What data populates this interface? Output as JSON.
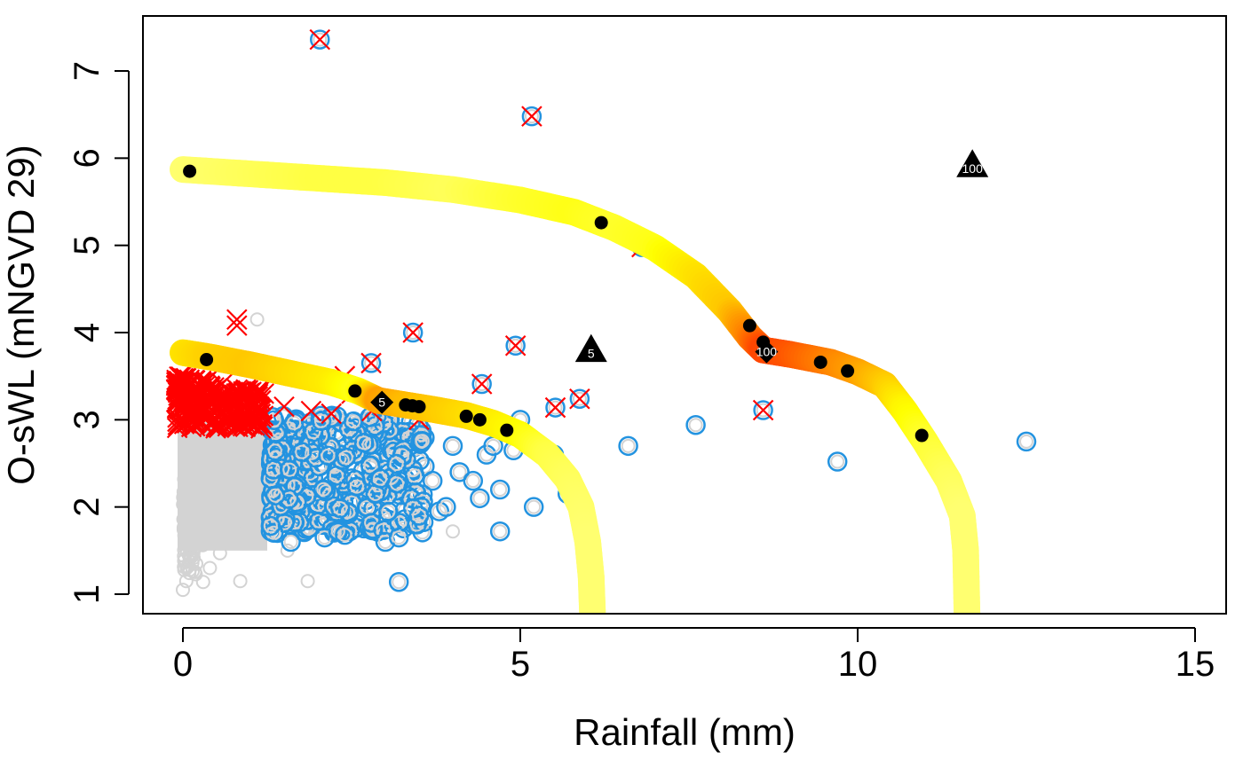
{
  "chart_data": {
    "type": "scatter",
    "title": "",
    "xlabel": "Rainfall (mm)",
    "ylabel": "O-sWL (mNGVD 29)",
    "xlim": [
      -0.6,
      15.5
    ],
    "ylim": [
      0.78,
      7.6
    ],
    "xticks": [
      0,
      5,
      10,
      15
    ],
    "yticks": [
      1,
      2,
      3,
      4,
      5,
      6,
      7
    ],
    "grid": false,
    "legend": "none",
    "colors": {
      "gray_points": "#d3d3d3",
      "blue_points": "#2393e0",
      "red_crosses": "#ff0000",
      "curve_low": "#ffff70",
      "curve_mid": "#ffd700",
      "curve_high": "#ff4500",
      "black_marks": "#000000"
    },
    "series": [
      {
        "name": "all-observations-gray",
        "marker": "open-circle",
        "note": "dense background cloud at rainfall 0-1.3, O-sWL 1-3 plus sparse scatter",
        "dense_region": {
          "x": [
            0,
            1.3
          ],
          "y": [
            1.2,
            2.95
          ]
        },
        "points": [
          [
            0.0,
            1.05
          ],
          [
            0.05,
            1.15
          ],
          [
            0.3,
            1.14
          ],
          [
            0.4,
            1.3
          ],
          [
            0.55,
            1.47
          ],
          [
            0.85,
            1.15
          ],
          [
            1.85,
            1.15
          ],
          [
            0.9,
            1.7
          ],
          [
            1.2,
            1.78
          ],
          [
            1.55,
            1.5
          ],
          [
            1.1,
            4.15
          ],
          [
            2.0,
            3.5
          ],
          [
            4.0,
            1.72
          ],
          [
            2.8,
            2.0
          ]
        ]
      },
      {
        "name": "rainfall-exceedances-blue",
        "marker": "open-circle",
        "dense_region": {
          "x": [
            1.3,
            3.0
          ],
          "y": [
            1.6,
            3.05
          ]
        },
        "points": [
          [
            1.6,
            1.6
          ],
          [
            2.1,
            1.65
          ],
          [
            2.3,
            1.72
          ],
          [
            2.4,
            1.68
          ],
          [
            3.0,
            1.6
          ],
          [
            3.2,
            1.65
          ],
          [
            3.2,
            1.14
          ],
          [
            3.5,
            1.9
          ],
          [
            3.8,
            1.95
          ],
          [
            3.9,
            2.0
          ],
          [
            3.7,
            2.3
          ],
          [
            4.1,
            2.4
          ],
          [
            4.3,
            2.3
          ],
          [
            4.0,
            2.7
          ],
          [
            4.5,
            2.6
          ],
          [
            4.7,
            2.2
          ],
          [
            4.4,
            2.1
          ],
          [
            4.7,
            1.72
          ],
          [
            5.2,
            2.0
          ],
          [
            4.6,
            2.7
          ],
          [
            5.0,
            3.0
          ],
          [
            4.9,
            2.65
          ],
          [
            5.5,
            2.6
          ],
          [
            5.7,
            2.15
          ],
          [
            6.6,
            2.7
          ],
          [
            7.6,
            2.94
          ],
          [
            9.7,
            2.52
          ],
          [
            12.5,
            2.75
          ]
        ]
      },
      {
        "name": "swl-exceedances-red",
        "marker": "cross",
        "dense_region": {
          "x": [
            -0.1,
            1.2
          ],
          "y": [
            2.9,
            3.5
          ]
        },
        "points": [
          [
            0.8,
            4.15
          ],
          [
            0.8,
            4.08
          ],
          [
            2.4,
            3.5
          ],
          [
            2.5,
            3.3
          ],
          [
            2.8,
            3.1
          ],
          [
            2.2,
            3.07
          ],
          [
            1.9,
            3.1
          ],
          [
            3.5,
            3.0
          ],
          [
            1.2,
            3.3
          ],
          [
            1.5,
            3.15
          ]
        ]
      },
      {
        "name": "joint-exceedances",
        "marker": "circle-with-cross",
        "points": [
          [
            2.03,
            7.36
          ],
          [
            5.17,
            6.48
          ],
          [
            3.41,
            4.0
          ],
          [
            2.79,
            3.65
          ],
          [
            4.93,
            3.85
          ],
          [
            4.43,
            3.41
          ],
          [
            5.52,
            3.14
          ],
          [
            5.88,
            3.24
          ],
          [
            8.6,
            3.11
          ],
          [
            6.8,
            4.98
          ]
        ]
      },
      {
        "name": "lower-isoline",
        "marker": "thick-line",
        "color_scale": "relative-density (yellow low to red high)",
        "points": [
          [
            0.0,
            3.77
          ],
          [
            0.4,
            3.72
          ],
          [
            1.0,
            3.63
          ],
          [
            1.6,
            3.53
          ],
          [
            2.2,
            3.43
          ],
          [
            2.6,
            3.33
          ],
          [
            2.9,
            3.22
          ],
          [
            3.3,
            3.17
          ],
          [
            3.7,
            3.12
          ],
          [
            4.2,
            3.05
          ],
          [
            4.6,
            2.96
          ],
          [
            5.0,
            2.83
          ],
          [
            5.4,
            2.6
          ],
          [
            5.7,
            2.32
          ],
          [
            5.9,
            2.0
          ],
          [
            6.0,
            1.6
          ],
          [
            6.05,
            1.2
          ],
          [
            6.07,
            0.78
          ]
        ],
        "density": [
          0.4,
          0.5,
          0.55,
          0.45,
          0.35,
          0.2,
          0.7,
          0.6,
          0.55,
          0.45,
          0.35,
          0.25,
          0.1,
          0.05,
          0.02,
          0.0,
          0.0,
          0.0
        ]
      },
      {
        "name": "upper-isoline",
        "marker": "thick-line",
        "color_scale": "relative-density (yellow low to red high)",
        "points": [
          [
            0.0,
            5.87
          ],
          [
            1.0,
            5.82
          ],
          [
            2.0,
            5.77
          ],
          [
            3.0,
            5.72
          ],
          [
            4.0,
            5.64
          ],
          [
            5.0,
            5.52
          ],
          [
            5.8,
            5.38
          ],
          [
            6.4,
            5.2
          ],
          [
            7.0,
            4.97
          ],
          [
            7.6,
            4.65
          ],
          [
            8.1,
            4.25
          ],
          [
            8.4,
            3.95
          ],
          [
            8.6,
            3.8
          ],
          [
            9.0,
            3.75
          ],
          [
            9.6,
            3.66
          ],
          [
            10.0,
            3.55
          ],
          [
            10.4,
            3.4
          ],
          [
            10.7,
            3.1
          ],
          [
            11.0,
            2.75
          ],
          [
            11.35,
            2.3
          ],
          [
            11.55,
            1.9
          ],
          [
            11.6,
            1.5
          ],
          [
            11.62,
            0.78
          ]
        ],
        "density": [
          0.0,
          0.05,
          0.1,
          0.1,
          0.05,
          0.15,
          0.2,
          0.15,
          0.2,
          0.4,
          0.55,
          0.8,
          1.0,
          0.95,
          0.8,
          0.7,
          0.55,
          0.3,
          0.15,
          0.05,
          0.0,
          0.0,
          0.0
        ]
      },
      {
        "name": "ensemble-samples",
        "marker": "filled-circle",
        "points": [
          [
            0.1,
            5.85
          ],
          [
            6.2,
            5.26
          ],
          [
            0.35,
            3.69
          ],
          [
            2.55,
            3.33
          ],
          [
            3.3,
            3.17
          ],
          [
            3.4,
            3.16
          ],
          [
            3.5,
            3.15
          ],
          [
            4.2,
            3.04
          ],
          [
            4.4,
            3.0
          ],
          [
            4.8,
            2.88
          ],
          [
            8.4,
            4.08
          ],
          [
            8.6,
            3.89
          ],
          [
            9.45,
            3.66
          ],
          [
            9.85,
            3.56
          ],
          [
            10.95,
            2.82
          ]
        ]
      },
      {
        "name": "most-likely-design-events",
        "marker": "filled-diamond",
        "points": [
          {
            "x": 2.95,
            "y": 3.2,
            "label": "5"
          },
          {
            "x": 8.65,
            "y": 3.78,
            "label": "100"
          }
        ]
      },
      {
        "name": "full-dependence-design-events",
        "marker": "filled-triangle",
        "points": [
          {
            "x": 6.05,
            "y": 3.8,
            "label": "5"
          },
          {
            "x": 11.7,
            "y": 5.92,
            "label": "100"
          }
        ]
      }
    ]
  }
}
